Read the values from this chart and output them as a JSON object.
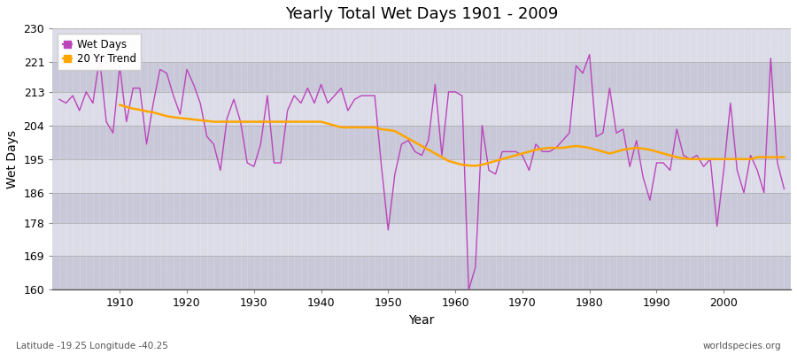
{
  "title": "Yearly Total Wet Days 1901 - 2009",
  "xlabel": "Year",
  "ylabel": "Wet Days",
  "subtitle": "Latitude -19.25 Longitude -40.25",
  "watermark": "worldspecies.org",
  "wet_days_color": "#BB44BB",
  "trend_color": "#FFA500",
  "bg_band_light": "#DCDCE8",
  "bg_band_dark": "#C8C8D8",
  "ylim": [
    160,
    230
  ],
  "yticks": [
    160,
    169,
    178,
    186,
    195,
    204,
    213,
    221,
    230
  ],
  "xticks": [
    1910,
    1920,
    1930,
    1940,
    1950,
    1960,
    1970,
    1980,
    1990,
    2000
  ],
  "years": [
    1901,
    1902,
    1903,
    1904,
    1905,
    1906,
    1907,
    1908,
    1909,
    1910,
    1911,
    1912,
    1913,
    1914,
    1915,
    1916,
    1917,
    1918,
    1919,
    1920,
    1921,
    1922,
    1923,
    1924,
    1925,
    1926,
    1927,
    1928,
    1929,
    1930,
    1931,
    1932,
    1933,
    1934,
    1935,
    1936,
    1937,
    1938,
    1939,
    1940,
    1941,
    1942,
    1943,
    1944,
    1945,
    1946,
    1947,
    1948,
    1949,
    1950,
    1951,
    1952,
    1953,
    1954,
    1955,
    1956,
    1957,
    1958,
    1959,
    1960,
    1961,
    1962,
    1963,
    1964,
    1965,
    1966,
    1967,
    1968,
    1969,
    1970,
    1971,
    1972,
    1973,
    1974,
    1975,
    1976,
    1977,
    1978,
    1979,
    1980,
    1981,
    1982,
    1983,
    1984,
    1985,
    1986,
    1987,
    1988,
    1989,
    1990,
    1991,
    1992,
    1993,
    1994,
    1995,
    1996,
    1997,
    1998,
    1999,
    2000,
    2001,
    2002,
    2003,
    2004,
    2005,
    2006,
    2007,
    2008,
    2009
  ],
  "wet_days": [
    211,
    210,
    212,
    208,
    213,
    210,
    222,
    205,
    202,
    220,
    205,
    214,
    214,
    199,
    210,
    219,
    218,
    212,
    207,
    219,
    215,
    210,
    201,
    199,
    192,
    206,
    211,
    205,
    194,
    193,
    199,
    212,
    194,
    194,
    208,
    212,
    210,
    214,
    210,
    215,
    210,
    212,
    214,
    208,
    211,
    212,
    212,
    212,
    193,
    176,
    191,
    199,
    200,
    197,
    196,
    200,
    215,
    196,
    213,
    213,
    212,
    160,
    166,
    204,
    192,
    191,
    197,
    197,
    197,
    196,
    192,
    199,
    197,
    197,
    198,
    200,
    202,
    220,
    218,
    223,
    201,
    202,
    214,
    202,
    203,
    193,
    200,
    190,
    184,
    194,
    194,
    192,
    203,
    196,
    195,
    196,
    193,
    195,
    177,
    192,
    210,
    192,
    186,
    196,
    192,
    186,
    222,
    194,
    187
  ],
  "trend_years": [
    1910,
    1911,
    1912,
    1913,
    1914,
    1915,
    1916,
    1917,
    1918,
    1919,
    1920,
    1921,
    1922,
    1923,
    1924,
    1925,
    1926,
    1927,
    1928,
    1929,
    1930,
    1931,
    1932,
    1933,
    1934,
    1935,
    1936,
    1937,
    1938,
    1939,
    1940,
    1941,
    1942,
    1943,
    1944,
    1945,
    1946,
    1947,
    1948,
    1949,
    1950,
    1951,
    1952,
    1953,
    1954,
    1955,
    1956,
    1957,
    1958,
    1959,
    1960,
    1961,
    1962,
    1963,
    1964,
    1965,
    1966,
    1967,
    1968,
    1969,
    1970,
    1971,
    1972,
    1973,
    1974,
    1975,
    1976,
    1977,
    1978,
    1979,
    1980,
    1981,
    1982,
    1983,
    1984,
    1985,
    1986,
    1987,
    1988,
    1989,
    1990,
    1991,
    1992,
    1993,
    1994,
    1995,
    1996,
    1997,
    1998,
    1999,
    2000,
    2001,
    2002,
    2003,
    2004,
    2005,
    2006,
    2007,
    2008,
    2009
  ],
  "trend_values": [
    209.5,
    209.0,
    208.5,
    208.2,
    207.8,
    207.5,
    207.0,
    206.5,
    206.2,
    206.0,
    205.8,
    205.6,
    205.4,
    205.2,
    205.0,
    205.0,
    205.0,
    205.0,
    205.0,
    205.0,
    205.0,
    205.0,
    205.0,
    205.0,
    205.0,
    205.0,
    205.0,
    205.0,
    205.0,
    205.0,
    205.0,
    204.5,
    204.0,
    203.5,
    203.5,
    203.5,
    203.5,
    203.5,
    203.5,
    203.0,
    202.8,
    202.5,
    201.5,
    200.5,
    199.5,
    198.5,
    197.5,
    196.5,
    195.5,
    194.5,
    194.0,
    193.5,
    193.3,
    193.2,
    193.5,
    194.0,
    194.5,
    195.0,
    195.5,
    196.0,
    196.5,
    197.0,
    197.5,
    197.8,
    198.0,
    198.0,
    198.0,
    198.3,
    198.5,
    198.3,
    198.0,
    197.5,
    197.0,
    196.5,
    197.0,
    197.5,
    197.8,
    198.0,
    197.8,
    197.5,
    197.0,
    196.5,
    196.0,
    195.5,
    195.2,
    195.0,
    195.0,
    195.0,
    195.0,
    195.0,
    195.0,
    195.0,
    195.0,
    195.0,
    195.0,
    195.5,
    195.5,
    195.5,
    195.5,
    195.5
  ]
}
